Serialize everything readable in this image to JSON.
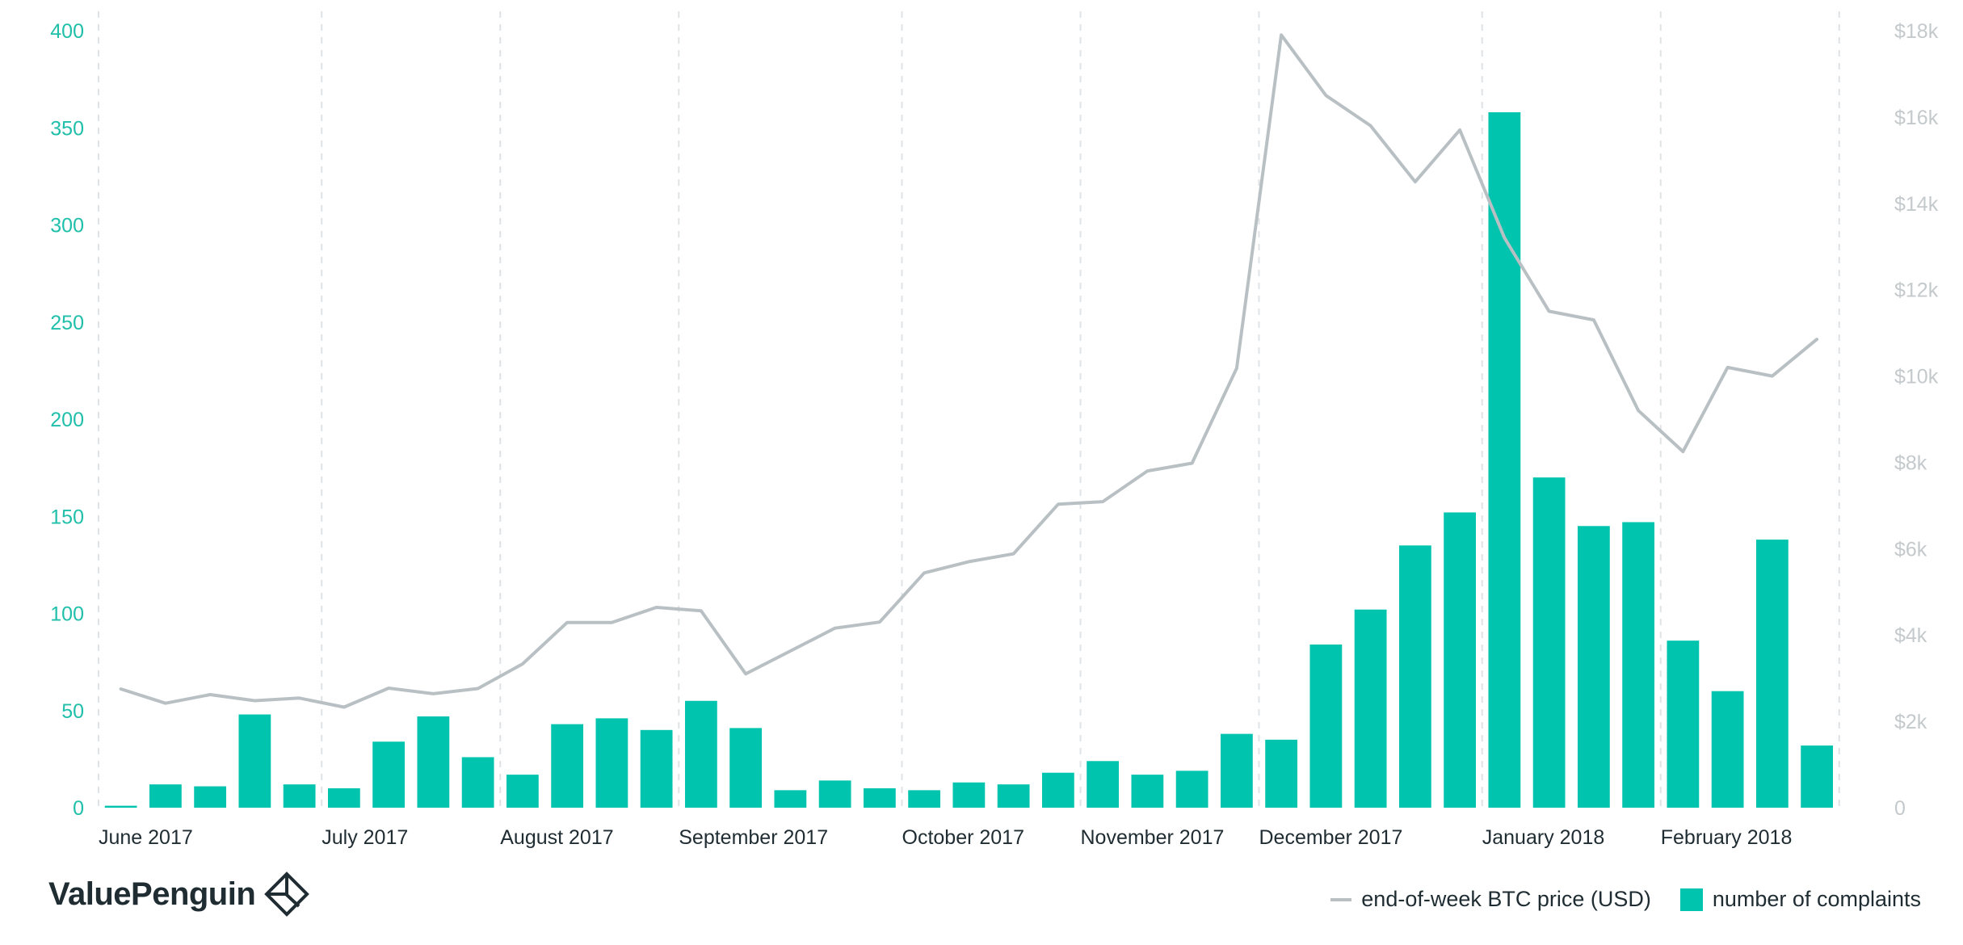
{
  "chart_data": {
    "type": "bar",
    "categories": [
      "2017-06-02",
      "2017-06-09",
      "2017-06-16",
      "2017-06-23",
      "2017-06-30",
      "2017-07-07",
      "2017-07-14",
      "2017-07-21",
      "2017-07-28",
      "2017-08-04",
      "2017-08-11",
      "2017-08-18",
      "2017-08-25",
      "2017-09-01",
      "2017-09-08",
      "2017-09-15",
      "2017-09-22",
      "2017-09-29",
      "2017-10-06",
      "2017-10-13",
      "2017-10-20",
      "2017-10-27",
      "2017-11-03",
      "2017-11-10",
      "2017-11-17",
      "2017-11-24",
      "2017-12-01",
      "2017-12-08",
      "2017-12-15",
      "2017-12-22",
      "2017-12-29",
      "2018-01-05",
      "2018-01-12",
      "2018-01-19",
      "2018-01-26",
      "2018-02-02",
      "2018-02-09",
      "2018-02-16",
      "2018-02-23",
      "2018-03-02"
    ],
    "series": [
      {
        "name": "number of complaints",
        "type": "bar",
        "axis": "left",
        "color": "#00c4ae",
        "values": [
          1,
          12,
          11,
          48,
          12,
          10,
          34,
          47,
          26,
          17,
          43,
          46,
          40,
          55,
          41,
          9,
          14,
          10,
          9,
          13,
          12,
          18,
          24,
          17,
          19,
          38,
          35,
          84,
          102,
          135,
          152,
          358,
          170,
          145,
          147,
          86,
          60,
          138,
          32,
          null
        ]
      },
      {
        "name": "end-of-week BTC price (USD)",
        "type": "line",
        "axis": "right",
        "color": "#b9c0c4",
        "values": [
          2750,
          2420,
          2620,
          2480,
          2540,
          2330,
          2770,
          2640,
          2760,
          3330,
          4290,
          4290,
          4640,
          4560,
          3100,
          3630,
          4160,
          4300,
          5440,
          5700,
          5880,
          7030,
          7090,
          7800,
          7980,
          10180,
          17900,
          16500,
          15800,
          14500,
          15700,
          13200,
          11500,
          11300,
          9200,
          8250,
          10200,
          10000,
          10850,
          null
        ]
      }
    ],
    "x_tick_labels": [
      "June 2017",
      "July 2017",
      "August 2017",
      "September 2017",
      "October 2017",
      "November 2017",
      "December 2017",
      "January 2018",
      "February 2018"
    ],
    "y_left": {
      "ylim": [
        0,
        400
      ],
      "ticks": [
        0,
        50,
        100,
        150,
        200,
        250,
        300,
        350,
        400
      ],
      "tick_labels": [
        "0",
        "50",
        "100",
        "150",
        "200",
        "250",
        "300",
        "350",
        "400"
      ]
    },
    "y_right": {
      "ylim": [
        0,
        18000
      ],
      "ticks": [
        0,
        2000,
        4000,
        6000,
        8000,
        10000,
        12000,
        14000,
        16000,
        18000
      ],
      "tick_labels": [
        "0",
        "$2k",
        "$4k",
        "$6k",
        "$8k",
        "$10k",
        "$12k",
        "$14k",
        "$16k",
        "$18k"
      ]
    },
    "grid": "vertical-dashed-at-months",
    "legend_position": "bottom-right"
  },
  "legend": {
    "price_label": "end-of-week BTC price (USD)",
    "complaints_label": "number of complaints"
  },
  "brand": {
    "name": "ValuePenguin"
  }
}
